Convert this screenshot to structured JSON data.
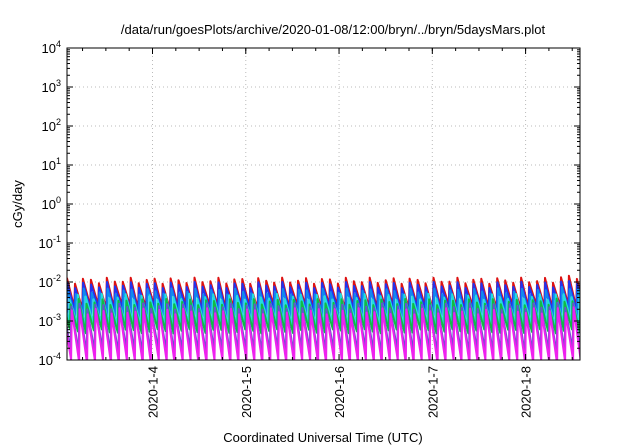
{
  "chart_data": {
    "type": "line",
    "title": "/data/run/goesPlots/archive/2020-01-08/12:00/bryn/../bryn/5daysMars.plot",
    "xlabel": "Coordinated Universal Time (UTC)",
    "ylabel": "cGy/day",
    "yscale": "log",
    "ylim": [
      0.0001,
      10000
    ],
    "xlim": [
      "2020-01-03 02:00",
      "2020-01-08 14:00"
    ],
    "grid": true,
    "x_ticks": [
      "2020-1-4",
      "2020-1-5",
      "2020-1-6",
      "2020-1-7",
      "2020-1-8"
    ],
    "y_ticks": [
      {
        "base": "10",
        "exp": "-4"
      },
      {
        "base": "10",
        "exp": "-3"
      },
      {
        "base": "10",
        "exp": "-2"
      },
      {
        "base": "10",
        "exp": "-1"
      },
      {
        "base": "10",
        "exp": "0"
      },
      {
        "base": "10",
        "exp": "1"
      },
      {
        "base": "10",
        "exp": "2"
      },
      {
        "base": "10",
        "exp": "3"
      },
      {
        "base": "10",
        "exp": "4"
      }
    ],
    "sawtooth_period_hours": 2.05,
    "series": [
      {
        "color": "#dd1111",
        "peak": 0.011,
        "trough": 0.0023,
        "late_peak": 0.015,
        "phase": 0.0
      },
      {
        "color": "#2233ee",
        "peak": 0.0085,
        "trough": 0.0019,
        "late_peak": 0.011,
        "phase": 0.02
      },
      {
        "color": "#1188ee",
        "peak": 0.0058,
        "trough": 0.0013,
        "late_peak": 0.0075,
        "phase": 0.1
      },
      {
        "color": "#22dddd",
        "peak": 0.0042,
        "trough": 0.00085,
        "late_peak": 0.0052,
        "phase": 0.35
      },
      {
        "color": "#11bb44",
        "peak": 0.0031,
        "trough": 0.00055,
        "late_peak": 0.0036,
        "phase": 0.45
      },
      {
        "color": "#6655cc",
        "peak": 0.0024,
        "trough": 0.00016,
        "late_peak": 0.0028,
        "phase": 0.55
      },
      {
        "color": "#ee22ee",
        "peak": 0.0018,
        "trough": 9e-05,
        "late_peak": 0.0021,
        "phase": 0.6
      }
    ]
  }
}
